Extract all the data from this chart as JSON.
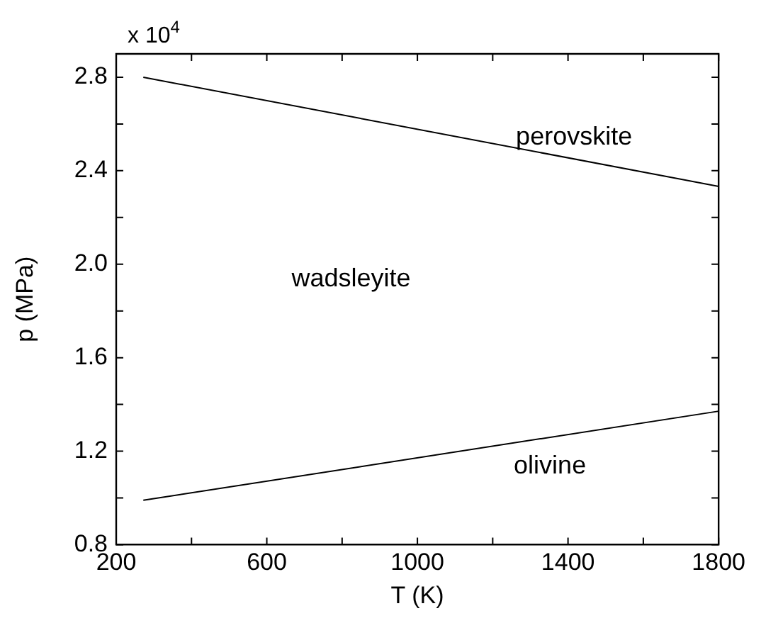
{
  "chart_data": {
    "type": "line",
    "xlabel": "T (K)",
    "ylabel": "p (MPa)",
    "x": [
      272,
      1800
    ],
    "series": [
      {
        "values": [
          2.8,
          2.333
        ],
        "color": "#000000"
      },
      {
        "values": [
          0.99,
          1.371
        ],
        "color": "#000000"
      }
    ],
    "xlim": [
      200,
      1800
    ],
    "xticks": [
      200,
      {
        "value": 400,
        "label": null
      },
      600,
      {
        "value": 800,
        "label": null
      },
      1000,
      {
        "value": 1200,
        "label": null
      },
      1400,
      {
        "value": 1600,
        "label": null
      },
      1800
    ],
    "ylim": [
      0.8,
      2.9
    ],
    "yticks": [
      0.8,
      {
        "value": 1.0,
        "label": null
      },
      1.2,
      {
        "value": 1.4,
        "label": null
      },
      1.6,
      {
        "value": 1.8,
        "label": null
      },
      {
        "value": 2,
        "label": "2.0"
      },
      {
        "value": 2.2,
        "label": null
      },
      2.4,
      {
        "value": 2.6,
        "label": null
      },
      2.8
    ],
    "annotations": [
      "x 10$^{4}$",
      "perovskite",
      "wadsleyite",
      "olivine"
    ],
    "grid": false,
    "legend": false,
    "marker": "none",
    "line_style": "solid"
  }
}
